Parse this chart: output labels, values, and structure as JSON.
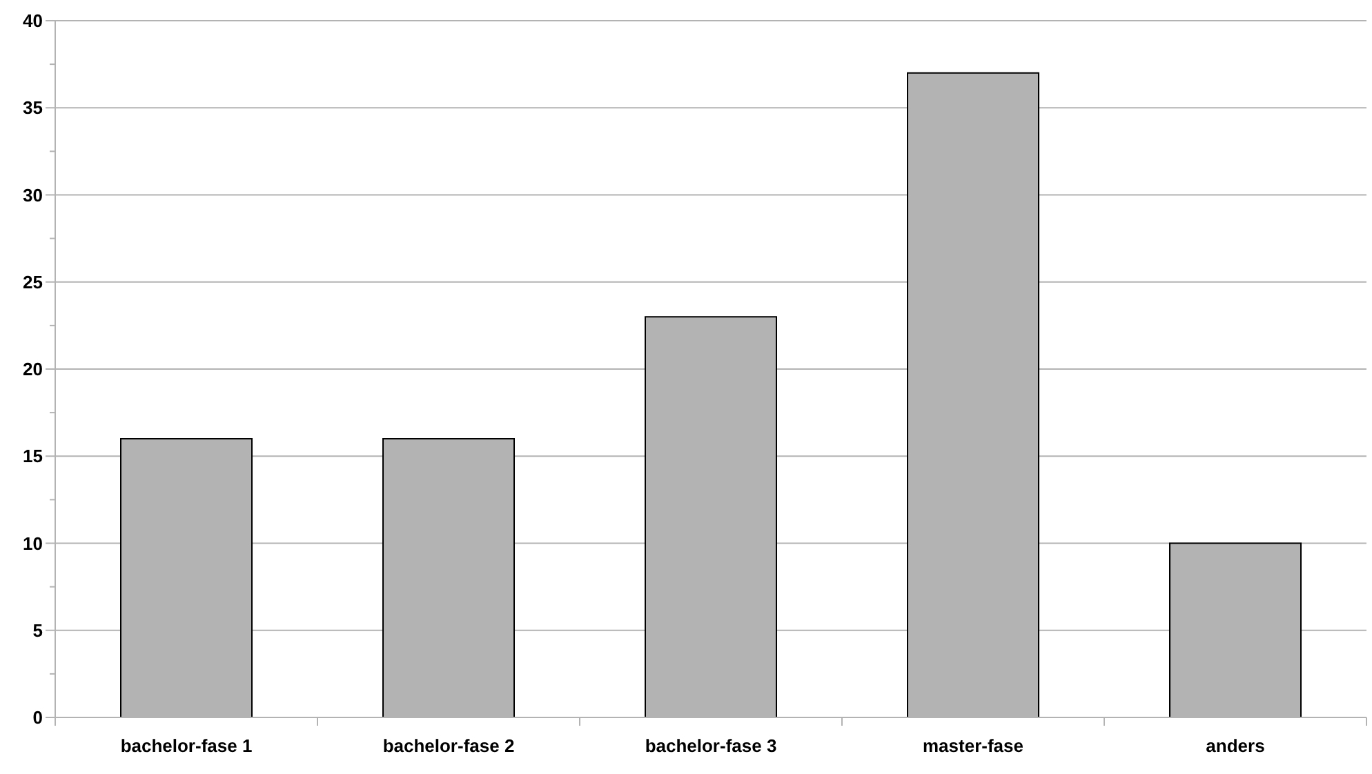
{
  "chart_data": {
    "type": "bar",
    "categories": [
      "bachelor-fase 1",
      "bachelor-fase 2",
      "bachelor-fase 3",
      "master-fase",
      "anders"
    ],
    "values": [
      16,
      16,
      23,
      37,
      10
    ],
    "color": "#b3b3b3",
    "ylim": [
      0,
      40
    ],
    "yticks": [
      0,
      {
        "value": 2.5,
        "label": null
      },
      5,
      {
        "value": 7.5,
        "label": null
      },
      10,
      {
        "value": 12.5,
        "label": null
      },
      15,
      {
        "value": 17.5,
        "label": null
      },
      20,
      {
        "value": 22.5,
        "label": null
      },
      25,
      {
        "value": 27.5,
        "label": null
      },
      30,
      {
        "value": 32.5,
        "label": null
      },
      35,
      {
        "value": 37.5,
        "label": null
      },
      40
    ],
    "grid": "y"
  }
}
